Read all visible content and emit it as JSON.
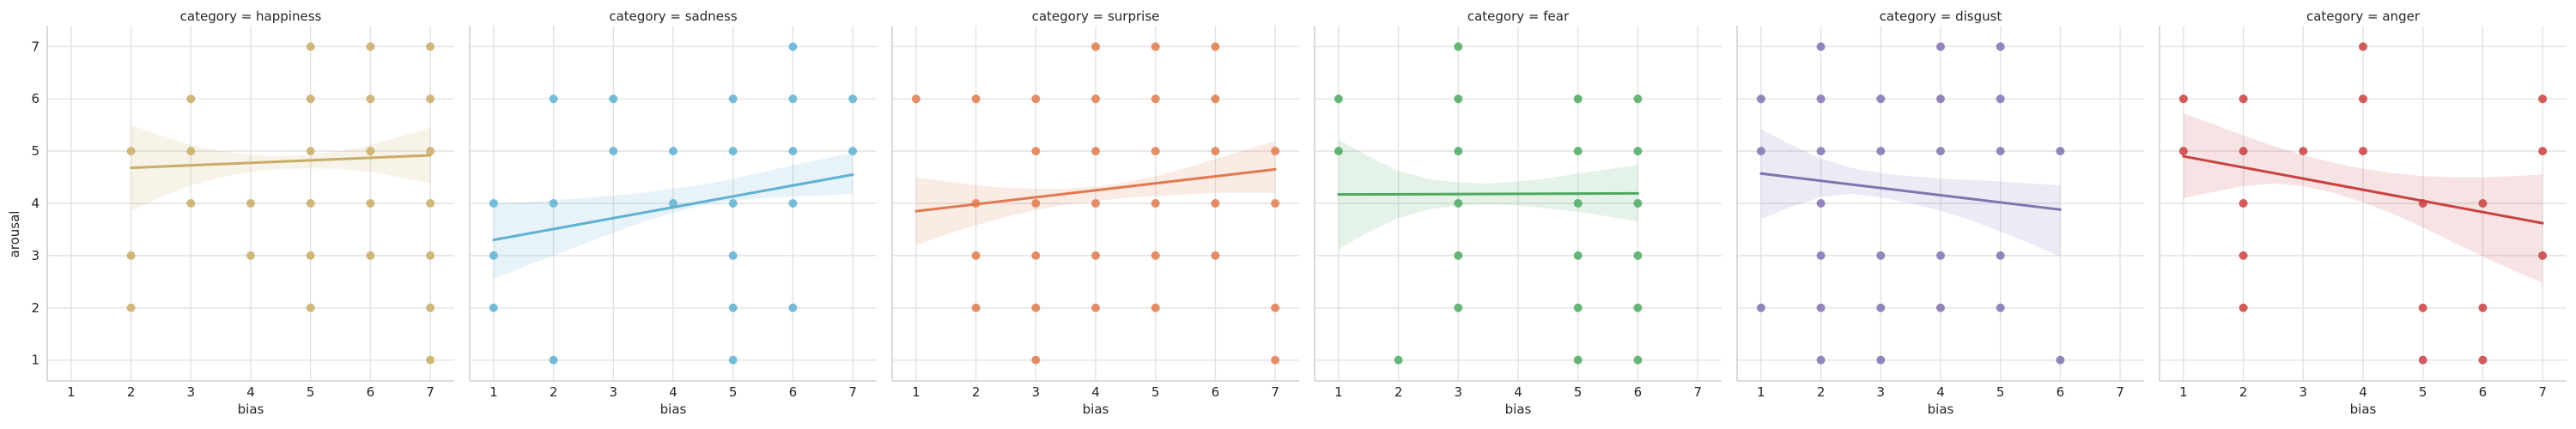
{
  "chart_data": {
    "type": "scatter",
    "layout": "facet-grid-1x6",
    "xlabel": "bias",
    "ylabel": "arousal",
    "xlim": [
      0.6,
      7.4
    ],
    "ylim": [
      0.6,
      7.4
    ],
    "xticks": [
      1,
      2,
      3,
      4,
      5,
      6,
      7
    ],
    "yticks": [
      1,
      2,
      3,
      4,
      5,
      6,
      7
    ],
    "grid": true,
    "legend": "none",
    "panels": [
      {
        "title": "category = happiness",
        "color": "#c9ad66",
        "points": [
          [
            2,
            2
          ],
          [
            2,
            3
          ],
          [
            2,
            5
          ],
          [
            3,
            4
          ],
          [
            3,
            5
          ],
          [
            3,
            6
          ],
          [
            4,
            3
          ],
          [
            4,
            4
          ],
          [
            5,
            2
          ],
          [
            5,
            3
          ],
          [
            5,
            4
          ],
          [
            5,
            5
          ],
          [
            5,
            6
          ],
          [
            5,
            7
          ],
          [
            6,
            3
          ],
          [
            6,
            4
          ],
          [
            6,
            5
          ],
          [
            6,
            6
          ],
          [
            6,
            7
          ],
          [
            7,
            1
          ],
          [
            7,
            2
          ],
          [
            7,
            3
          ],
          [
            7,
            4
          ],
          [
            7,
            5
          ],
          [
            7,
            6
          ],
          [
            7,
            7
          ]
        ],
        "fit": {
          "x": [
            2,
            7
          ],
          "y": [
            4.68,
            4.92
          ]
        },
        "band": {
          "x": [
            2,
            2.5,
            3,
            3.5,
            4,
            4.5,
            5,
            5.5,
            6,
            6.5,
            7
          ],
          "lower": [
            3.85,
            4.12,
            4.34,
            4.5,
            4.6,
            4.66,
            4.67,
            4.66,
            4.6,
            4.5,
            4.38
          ],
          "upper": [
            5.5,
            5.3,
            5.12,
            5.0,
            4.93,
            4.9,
            4.93,
            5.0,
            5.12,
            5.28,
            5.45
          ]
        }
      },
      {
        "title": "category = sadness",
        "color": "#5fb1d3",
        "points": [
          [
            1,
            2
          ],
          [
            1,
            3
          ],
          [
            1,
            4
          ],
          [
            2,
            1
          ],
          [
            2,
            4
          ],
          [
            2,
            6
          ],
          [
            3,
            5
          ],
          [
            3,
            6
          ],
          [
            4,
            4
          ],
          [
            4,
            5
          ],
          [
            5,
            1
          ],
          [
            5,
            2
          ],
          [
            5,
            3
          ],
          [
            5,
            4
          ],
          [
            5,
            5
          ],
          [
            5,
            6
          ],
          [
            6,
            2
          ],
          [
            6,
            4
          ],
          [
            6,
            5
          ],
          [
            6,
            6
          ],
          [
            6,
            7
          ],
          [
            7,
            5
          ],
          [
            7,
            6
          ]
        ],
        "fit": {
          "x": [
            1,
            7
          ],
          "y": [
            3.3,
            4.55
          ]
        },
        "band": {
          "x": [
            1,
            1.5,
            2,
            2.5,
            3,
            3.5,
            4,
            4.5,
            5,
            5.5,
            6,
            6.5,
            7
          ],
          "lower": [
            2.55,
            2.78,
            3.0,
            3.22,
            3.44,
            3.64,
            3.82,
            3.96,
            4.05,
            4.1,
            4.13,
            4.15,
            4.18
          ],
          "upper": [
            4.0,
            4.02,
            4.06,
            4.1,
            4.15,
            4.2,
            4.28,
            4.36,
            4.47,
            4.6,
            4.73,
            4.85,
            4.97
          ]
        }
      },
      {
        "title": "category = surprise",
        "color": "#e07b4f",
        "points": [
          [
            1,
            6
          ],
          [
            2,
            2
          ],
          [
            2,
            3
          ],
          [
            2,
            4
          ],
          [
            2,
            6
          ],
          [
            3,
            1
          ],
          [
            3,
            2
          ],
          [
            3,
            3
          ],
          [
            3,
            4
          ],
          [
            3,
            5
          ],
          [
            3,
            6
          ],
          [
            4,
            2
          ],
          [
            4,
            3
          ],
          [
            4,
            4
          ],
          [
            4,
            5
          ],
          [
            4,
            6
          ],
          [
            4,
            7
          ],
          [
            5,
            2
          ],
          [
            5,
            3
          ],
          [
            5,
            4
          ],
          [
            5,
            5
          ],
          [
            5,
            6
          ],
          [
            5,
            7
          ],
          [
            6,
            3
          ],
          [
            6,
            4
          ],
          [
            6,
            5
          ],
          [
            6,
            6
          ],
          [
            6,
            7
          ],
          [
            7,
            1
          ],
          [
            7,
            2
          ],
          [
            7,
            4
          ],
          [
            7,
            5
          ]
        ],
        "fit": {
          "x": [
            1,
            7
          ],
          "y": [
            3.85,
            4.65
          ]
        },
        "band": {
          "x": [
            1,
            1.5,
            2,
            2.5,
            3,
            3.5,
            4,
            4.5,
            5,
            5.5,
            6,
            6.5,
            7
          ],
          "lower": [
            3.2,
            3.4,
            3.58,
            3.74,
            3.87,
            3.97,
            4.05,
            4.1,
            4.14,
            4.17,
            4.2,
            4.2,
            4.2
          ],
          "upper": [
            4.5,
            4.42,
            4.35,
            4.3,
            4.28,
            4.28,
            4.32,
            4.4,
            4.52,
            4.68,
            4.85,
            5.02,
            5.2
          ]
        }
      },
      {
        "title": "category = fear",
        "color": "#4daa62",
        "points": [
          [
            1,
            5
          ],
          [
            1,
            6
          ],
          [
            2,
            1
          ],
          [
            3,
            2
          ],
          [
            3,
            3
          ],
          [
            3,
            4
          ],
          [
            3,
            5
          ],
          [
            3,
            6
          ],
          [
            3,
            7
          ],
          [
            5,
            1
          ],
          [
            5,
            2
          ],
          [
            5,
            3
          ],
          [
            5,
            4
          ],
          [
            5,
            5
          ],
          [
            5,
            6
          ],
          [
            6,
            1
          ],
          [
            6,
            2
          ],
          [
            6,
            3
          ],
          [
            6,
            4
          ],
          [
            6,
            5
          ],
          [
            6,
            6
          ]
        ],
        "fit": {
          "x": [
            1,
            6
          ],
          "y": [
            4.17,
            4.19
          ]
        },
        "band": {
          "x": [
            1,
            1.5,
            2,
            2.5,
            3,
            3.5,
            4,
            4.5,
            5,
            5.5,
            6
          ],
          "lower": [
            3.12,
            3.45,
            3.72,
            3.88,
            3.96,
            3.98,
            3.96,
            3.9,
            3.84,
            3.75,
            3.65
          ],
          "upper": [
            5.22,
            4.9,
            4.62,
            4.47,
            4.4,
            4.38,
            4.42,
            4.48,
            4.57,
            4.65,
            4.73
          ]
        }
      },
      {
        "title": "category = disgust",
        "color": "#8172b2",
        "points": [
          [
            1,
            2
          ],
          [
            1,
            5
          ],
          [
            1,
            6
          ],
          [
            2,
            1
          ],
          [
            2,
            2
          ],
          [
            2,
            3
          ],
          [
            2,
            4
          ],
          [
            2,
            5
          ],
          [
            2,
            6
          ],
          [
            2,
            7
          ],
          [
            3,
            1
          ],
          [
            3,
            2
          ],
          [
            3,
            3
          ],
          [
            3,
            5
          ],
          [
            3,
            6
          ],
          [
            4,
            2
          ],
          [
            4,
            3
          ],
          [
            4,
            5
          ],
          [
            4,
            6
          ],
          [
            4,
            7
          ],
          [
            5,
            2
          ],
          [
            5,
            3
          ],
          [
            5,
            5
          ],
          [
            5,
            6
          ],
          [
            5,
            7
          ],
          [
            6,
            1
          ],
          [
            6,
            5
          ]
        ],
        "fit": {
          "x": [
            1,
            6
          ],
          "y": [
            4.57,
            3.88
          ]
        },
        "band": {
          "x": [
            1,
            1.5,
            2,
            2.5,
            3,
            3.5,
            4,
            4.5,
            5,
            5.5,
            6
          ],
          "lower": [
            3.7,
            3.93,
            4.12,
            4.18,
            4.12,
            4.0,
            3.86,
            3.68,
            3.46,
            3.23,
            2.98
          ],
          "upper": [
            5.42,
            5.12,
            4.86,
            4.68,
            4.58,
            4.52,
            4.47,
            4.45,
            4.42,
            4.38,
            4.35
          ]
        }
      },
      {
        "title": "category = anger",
        "color": "#c94141",
        "points": [
          [
            1,
            5
          ],
          [
            1,
            6
          ],
          [
            2,
            2
          ],
          [
            2,
            3
          ],
          [
            2,
            4
          ],
          [
            2,
            5
          ],
          [
            2,
            6
          ],
          [
            3,
            5
          ],
          [
            4,
            5
          ],
          [
            4,
            6
          ],
          [
            4,
            7
          ],
          [
            5,
            1
          ],
          [
            5,
            2
          ],
          [
            5,
            4
          ],
          [
            6,
            1
          ],
          [
            6,
            2
          ],
          [
            6,
            4
          ],
          [
            7,
            3
          ],
          [
            7,
            5
          ],
          [
            7,
            6
          ]
        ],
        "fit": {
          "x": [
            1,
            7
          ],
          "y": [
            4.9,
            3.62
          ]
        },
        "band": {
          "x": [
            1,
            1.5,
            2,
            2.5,
            3,
            3.5,
            4,
            4.5,
            5,
            5.5,
            6,
            6.5,
            7
          ],
          "lower": [
            4.1,
            4.22,
            4.33,
            4.38,
            4.33,
            4.2,
            4.02,
            3.8,
            3.54,
            3.26,
            2.98,
            2.72,
            2.48
          ],
          "upper": [
            5.72,
            5.52,
            5.3,
            5.1,
            4.92,
            4.78,
            4.66,
            4.58,
            4.52,
            4.5,
            4.5,
            4.52,
            4.55
          ]
        }
      }
    ]
  }
}
